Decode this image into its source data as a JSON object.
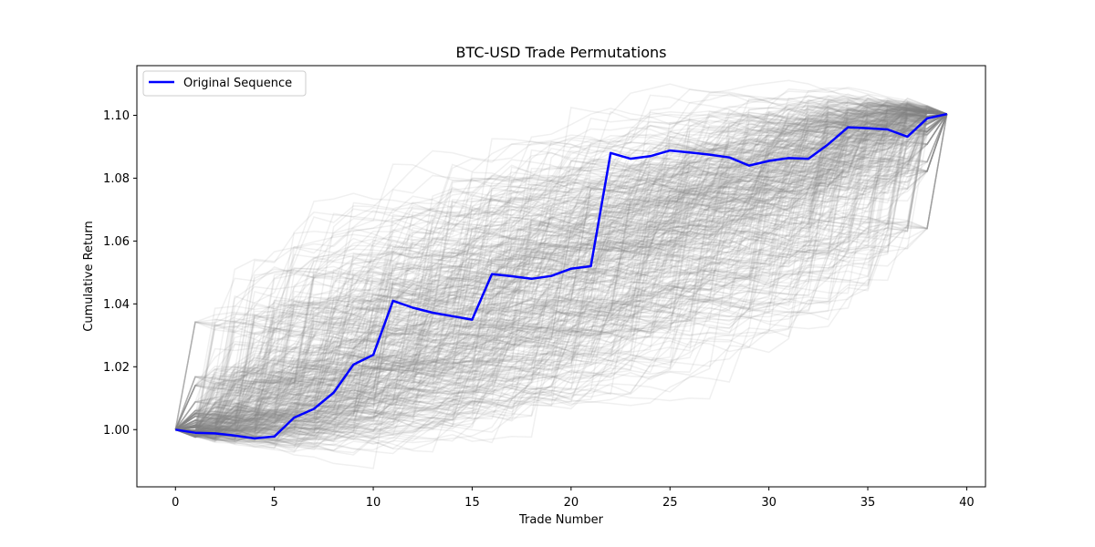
{
  "chart_data": {
    "type": "line",
    "title": "BTC-USD Trade Permutations",
    "xlabel": "Trade Number",
    "ylabel": "Cumulative Return",
    "xlim": [
      -1.95,
      40.95
    ],
    "ylim": [
      0.9818,
      1.1158
    ],
    "xticks": [
      0,
      5,
      10,
      15,
      20,
      25,
      30,
      35,
      40
    ],
    "yticks": [
      1.0,
      1.02,
      1.04,
      1.06,
      1.08,
      1.1
    ],
    "grid": false,
    "legend": {
      "placement": "top-left",
      "entries": [
        "Original Sequence"
      ]
    },
    "series": [
      {
        "name": "Original Sequence",
        "color": "#0000ff",
        "x": [
          0,
          1,
          2,
          3,
          4,
          5,
          6,
          7,
          8,
          9,
          10,
          11,
          12,
          13,
          14,
          15,
          16,
          17,
          18,
          19,
          20,
          21,
          22,
          23,
          24,
          25,
          26,
          27,
          28,
          29,
          30,
          31,
          32,
          33,
          34,
          35,
          36,
          37,
          38,
          39
        ],
        "values": [
          1.0,
          0.999,
          0.9988,
          0.9981,
          0.9972,
          0.9978,
          1.0038,
          1.0066,
          1.0118,
          1.0207,
          1.0238,
          1.041,
          1.0388,
          1.0372,
          1.0361,
          1.035,
          1.0495,
          1.0488,
          1.048,
          1.0489,
          1.0512,
          1.052,
          1.088,
          1.0862,
          1.087,
          1.0888,
          1.0882,
          1.0875,
          1.0866,
          1.084,
          1.0855,
          1.0864,
          1.0862,
          1.0908,
          1.0962,
          1.0959,
          1.0955,
          1.0932,
          1.099,
          1.1004
        ]
      },
      {
        "name": "",
        "color": "#808080",
        "opacity": 0.12,
        "kind": "permutations",
        "count": 400,
        "start": 1.0,
        "end": 1.1004
      }
    ]
  }
}
